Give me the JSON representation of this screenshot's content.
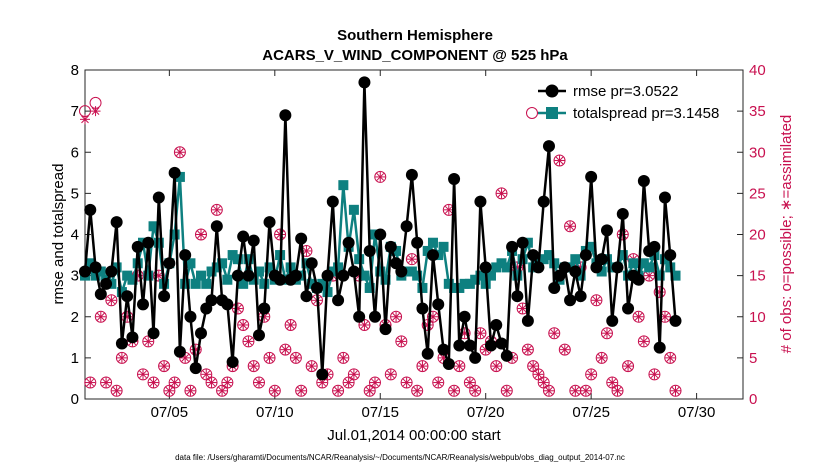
{
  "chart_data": {
    "type": "line",
    "title": "Southern Hemisphere",
    "subtitle": "ACARS_V_WIND_COMPONENT @ 525 hPa",
    "xlabel": "Jul.01,2014 00:00:00 start",
    "ylabel_left": "rmse and totalspread",
    "ylabel_right": "# of obs: o=possible; ∗=assimilated",
    "footnote": "data file: /Users/gharamti/Documents/NCAR/Reanalysis/~/Documents/NCAR/Reanalysis/webpub/obs_diag_output_2014-07.nc",
    "xlim": [
      1,
      32.2
    ],
    "ylim_left": [
      0,
      8
    ],
    "ylim_right": [
      0,
      40
    ],
    "yticks_left": [
      "0",
      "1",
      "2",
      "3",
      "4",
      "5",
      "6",
      "7",
      "8"
    ],
    "yticks_right": [
      "0",
      "5",
      "10",
      "15",
      "20",
      "25",
      "30",
      "35",
      "40"
    ],
    "xticks": [
      {
        "x": 5,
        "label": "07/05"
      },
      {
        "x": 10,
        "label": "07/10"
      },
      {
        "x": 15,
        "label": "07/15"
      },
      {
        "x": 20,
        "label": "07/20"
      },
      {
        "x": 25,
        "label": "07/25"
      },
      {
        "x": 30,
        "label": "07/30"
      }
    ],
    "grid": false,
    "legend_position": "top-right",
    "series": [
      {
        "name": "rmse pr=3.0522",
        "axis": "left",
        "color": "#000000",
        "marker": "filled-circle",
        "values": [
          3.1,
          4.6,
          3.2,
          2.55,
          2.8,
          3.1,
          4.3,
          1.35,
          2.5,
          1.5,
          3.7,
          2.3,
          3.8,
          1.6,
          4.9,
          2.5,
          3.3,
          5.5,
          1.15,
          3.5,
          2.0,
          0.75,
          1.6,
          2.2,
          2.4,
          4.2,
          2.4,
          2.3,
          0.9,
          3.0,
          3.95,
          3.0,
          3.85,
          1.55,
          2.2,
          4.3,
          3.0,
          2.9,
          6.9,
          2.9,
          3.0,
          3.9,
          2.5,
          3.3,
          2.7,
          0.6,
          3.0,
          4.8,
          2.4,
          3.0,
          3.8,
          3.1,
          2.0,
          7.7,
          3.6,
          2.0,
          4.0,
          1.7,
          3.7,
          3.3,
          3.1,
          4.2,
          5.45,
          3.8,
          2.2,
          1.1,
          3.5,
          2.3,
          1.2,
          0.85,
          5.35,
          1.3,
          2.0,
          1.3,
          1.0,
          4.8,
          3.2,
          1.3,
          1.8,
          1.35,
          1.05,
          3.7,
          2.5,
          3.8,
          1.9,
          3.5,
          3.2,
          4.8,
          6.15,
          2.7,
          3.0,
          3.2,
          2.4,
          3.1,
          2.5,
          3.5,
          5.4,
          3.2,
          3.4,
          4.1,
          1.9,
          3.2,
          4.5,
          2.2,
          3.0,
          2.9,
          5.3,
          3.6,
          3.7,
          1.25,
          4.9,
          3.5,
          1.9
        ]
      },
      {
        "name": "totalspread pr=3.1458",
        "axis": "left",
        "color": "#0e8080",
        "marker": "filled-square",
        "values": [
          3.0,
          3.3,
          3.0,
          3.1,
          2.9,
          2.8,
          3.2,
          2.6,
          3.0,
          2.9,
          3.3,
          3.8,
          3.0,
          4.2,
          3.8,
          2.8,
          3.3,
          4.0,
          5.4,
          2.8,
          3.3,
          2.8,
          3.0,
          2.8,
          3.1,
          3.2,
          3.3,
          2.9,
          3.5,
          3.4,
          2.8,
          3.4,
          2.9,
          3.1,
          2.8,
          3.2,
          2.9,
          3.5,
          2.9,
          3.2,
          2.9,
          3.0,
          3.3,
          2.8,
          2.7,
          2.8,
          2.6,
          3.1,
          3.2,
          5.2,
          3.7,
          4.6,
          3.4,
          3.0,
          2.7,
          4.0,
          3.1,
          2.9,
          3.7,
          3.6,
          3.0,
          3.1,
          3.1,
          3.0,
          2.7,
          3.6,
          3.8,
          3.5,
          3.7,
          2.8,
          2.7,
          2.7,
          2.8,
          2.8,
          2.9,
          3.0,
          2.8,
          3.0,
          3.2,
          3.3,
          3.2,
          3.6,
          3.0,
          3.4,
          3.8,
          3.2,
          3.3,
          3.4,
          3.5,
          3.3,
          2.9,
          3.2,
          3.2,
          3.4,
          3.0,
          3.6,
          3.7,
          3.3,
          3.1,
          3.4,
          3.2,
          3.2,
          3.5,
          3.0,
          3.3,
          3.0,
          3.3,
          3.2,
          3.5,
          3.0,
          3.4,
          3.2,
          3.0
        ]
      },
      {
        "name": "possible",
        "axis": "right",
        "color": "#c8104f",
        "marker": "open-circle",
        "values": [
          35,
          2,
          36,
          10,
          2,
          12,
          1,
          5,
          10,
          7,
          15,
          3,
          7,
          2,
          15,
          4,
          1,
          2,
          30,
          5,
          1,
          6,
          20,
          3,
          2,
          23,
          1,
          2,
          4,
          11,
          9,
          7,
          4,
          2,
          10,
          5,
          1,
          20,
          6,
          9,
          5,
          1,
          18,
          4,
          12,
          2,
          3,
          15,
          1,
          5,
          2,
          3,
          15,
          9,
          1,
          2,
          27,
          9,
          3,
          10,
          7,
          2,
          17,
          1,
          4,
          9,
          10,
          2,
          5,
          23,
          1,
          4,
          8,
          2,
          1,
          8,
          6,
          7,
          4,
          25,
          1,
          5,
          16,
          11,
          6,
          4,
          3,
          2,
          1,
          8,
          29,
          6,
          21,
          1,
          16,
          1,
          3,
          12,
          5,
          8,
          2,
          1,
          20,
          4,
          17,
          10,
          7,
          15,
          3,
          13,
          10,
          5,
          1
        ]
      },
      {
        "name": "assimilated",
        "axis": "right",
        "color": "#c8104f",
        "marker": "asterisk",
        "values": [
          34,
          2,
          35,
          10,
          2,
          12,
          1,
          5,
          10,
          7,
          15,
          3,
          7,
          2,
          15,
          4,
          1,
          2,
          30,
          5,
          1,
          6,
          20,
          3,
          2,
          23,
          1,
          2,
          4,
          11,
          9,
          7,
          4,
          2,
          10,
          5,
          1,
          20,
          6,
          9,
          5,
          1,
          18,
          4,
          12,
          2,
          3,
          15,
          1,
          5,
          2,
          3,
          15,
          9,
          1,
          2,
          27,
          9,
          3,
          10,
          7,
          2,
          17,
          1,
          4,
          9,
          10,
          2,
          5,
          23,
          1,
          4,
          8,
          2,
          1,
          8,
          6,
          7,
          4,
          25,
          1,
          5,
          16,
          11,
          6,
          4,
          3,
          2,
          1,
          8,
          29,
          6,
          21,
          1,
          16,
          1,
          3,
          12,
          5,
          8,
          2,
          1,
          20,
          4,
          17,
          10,
          7,
          15,
          3,
          13,
          10,
          5,
          1
        ]
      }
    ]
  }
}
